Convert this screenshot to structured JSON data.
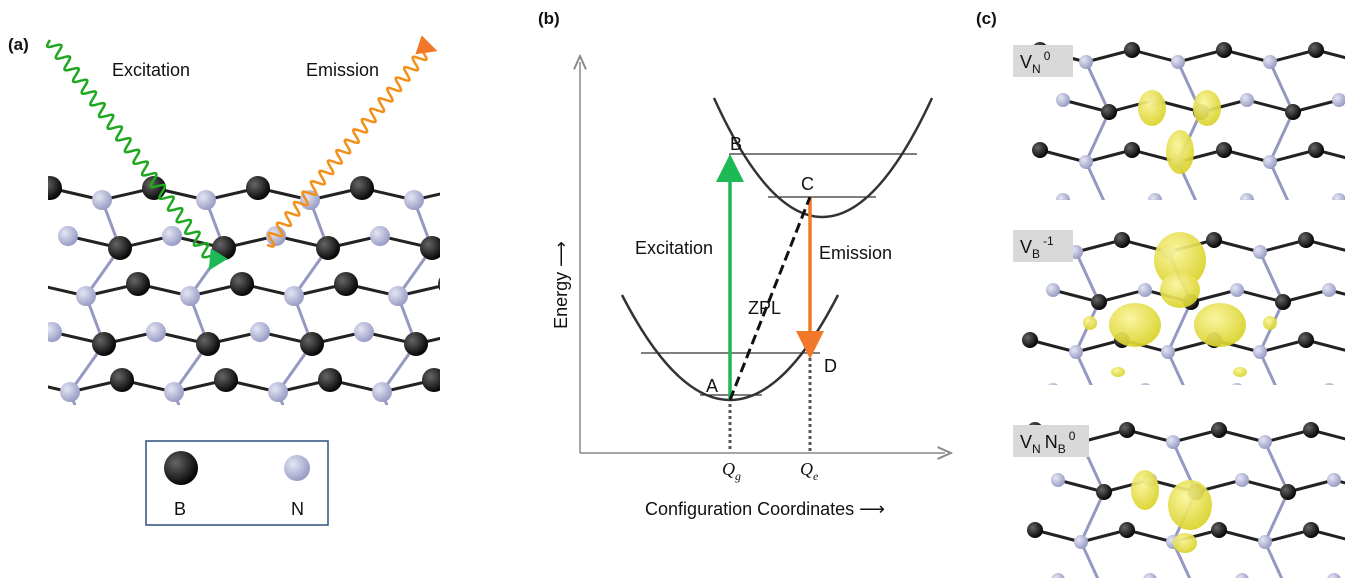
{
  "panel_a": {
    "label": "(a)",
    "excitation": "Excitation",
    "emission": "Emission",
    "legend": [
      {
        "symbol": "B"
      },
      {
        "symbol": "N"
      }
    ]
  },
  "panel_b": {
    "label": "(b)",
    "y_axis": "Energy ⟶",
    "x_axis": "Configuration Coordinates ⟶",
    "point_a": "A",
    "point_b": "B",
    "point_c": "C",
    "point_d": "D",
    "excitation": "Excitation",
    "emission": "Emission",
    "zpl": "ZPL",
    "q_g": {
      "main": "Q",
      "sub": "g"
    },
    "q_e": {
      "main": "Q",
      "sub": "e"
    }
  },
  "panel_c": {
    "label": "(c)",
    "defects": [
      [
        {
          "main": "V",
          "sub": "N",
          "sup": "0"
        }
      ],
      [
        {
          "main": "V",
          "sub": "B",
          "sup": "-1"
        }
      ],
      [
        {
          "main": "V",
          "sub": "N"
        },
        {
          "main": "N",
          "sub": "B",
          "sup": "0"
        }
      ]
    ]
  }
}
